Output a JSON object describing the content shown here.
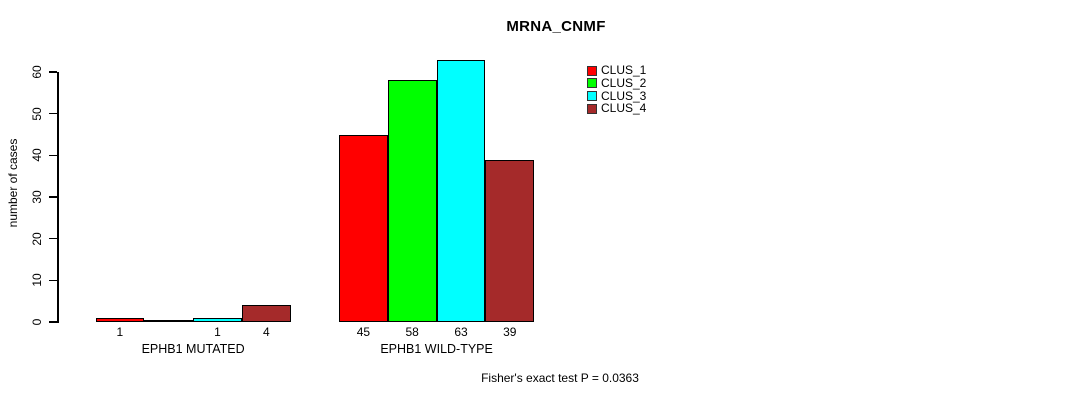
{
  "chart_data": {
    "type": "bar",
    "title": "MRNA_CNMF",
    "xlabel": "",
    "ylabel": "number of cases",
    "ylim": [
      0,
      63
    ],
    "yticks": [
      0,
      10,
      20,
      30,
      40,
      50,
      60
    ],
    "grid": false,
    "legend_position": "top-right",
    "bar_border_color": "#000000",
    "categories": [
      "EPHB1 MUTATED",
      "EPHB1 WILD-TYPE"
    ],
    "series": [
      {
        "name": "CLUS_1",
        "color": "#FF0000",
        "values": [
          1,
          45
        ]
      },
      {
        "name": "CLUS_2",
        "color": "#00FF00",
        "values": [
          0,
          58
        ]
      },
      {
        "name": "CLUS_3",
        "color": "#00FFFF",
        "values": [
          1,
          63
        ]
      },
      {
        "name": "CLUS_4",
        "color": "#A52A2A",
        "values": [
          4,
          39
        ]
      }
    ],
    "value_labels": {
      "shown": true,
      "zero_values_hidden": true
    },
    "annotation": "Fisher's exact test P = 0.0363"
  }
}
